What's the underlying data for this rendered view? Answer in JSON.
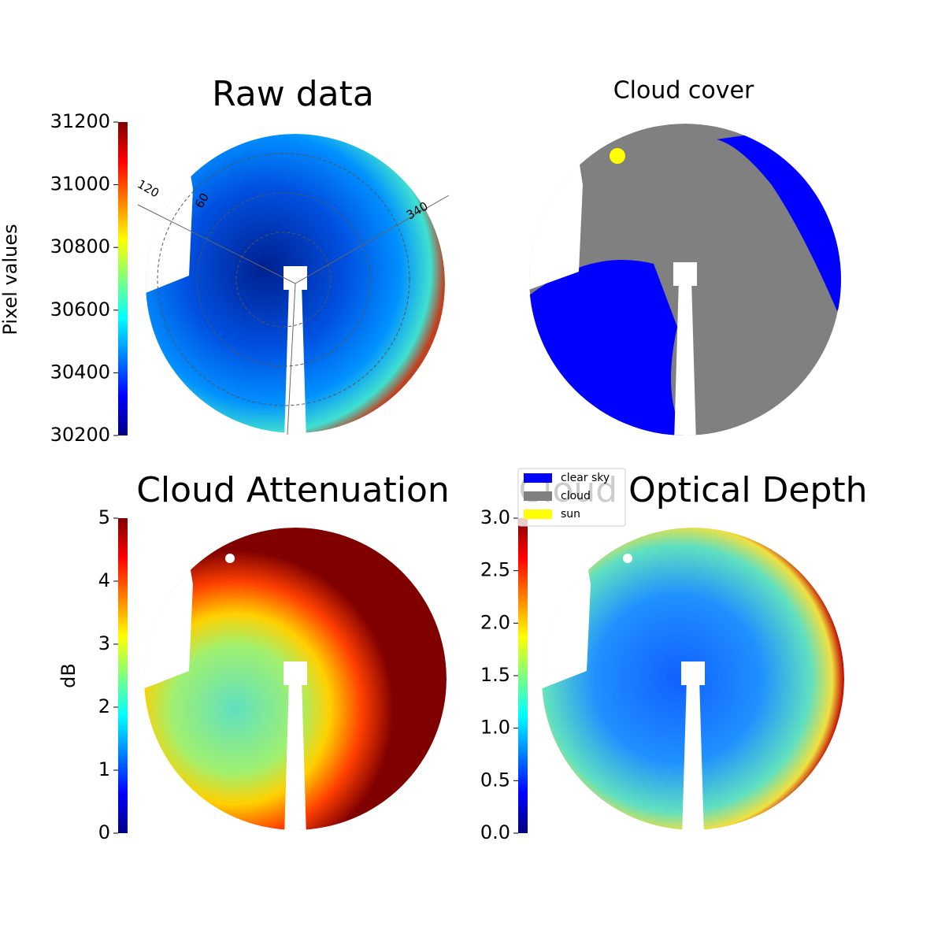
{
  "chart_data": [
    {
      "type": "image",
      "title": "Raw data",
      "colorbar_label": "Pixel values",
      "ylim": [
        30200,
        31200
      ],
      "yticks": [
        30200,
        30400,
        30600,
        30800,
        31000,
        31200
      ],
      "colormap": "jet",
      "polar_labels": [
        120,
        60,
        340
      ]
    },
    {
      "type": "image",
      "title": "Cloud cover",
      "legend": {
        "entries": [
          {
            "name": "clear sky",
            "color": "#0000ff"
          },
          {
            "name": "cloud",
            "color": "#808080"
          },
          {
            "name": "sun",
            "color": "#ffff00"
          }
        ]
      }
    },
    {
      "type": "image",
      "title": "Cloud Attenuation",
      "colorbar_label": "dB",
      "ylim": [
        0,
        5
      ],
      "yticks": [
        0,
        1,
        2,
        3,
        4,
        5
      ],
      "colormap": "jet"
    },
    {
      "type": "image",
      "title": "Cloud Optical Depth",
      "ylim": [
        0,
        3
      ],
      "yticks": [
        {
          "value": 0,
          "label": "0.0"
        },
        0.5,
        {
          "value": 1,
          "label": "1.0"
        },
        1.5,
        {
          "value": 2,
          "label": "2.0"
        },
        2.5,
        {
          "value": 3,
          "label": "3.0"
        }
      ],
      "colormap": "jet"
    }
  ]
}
